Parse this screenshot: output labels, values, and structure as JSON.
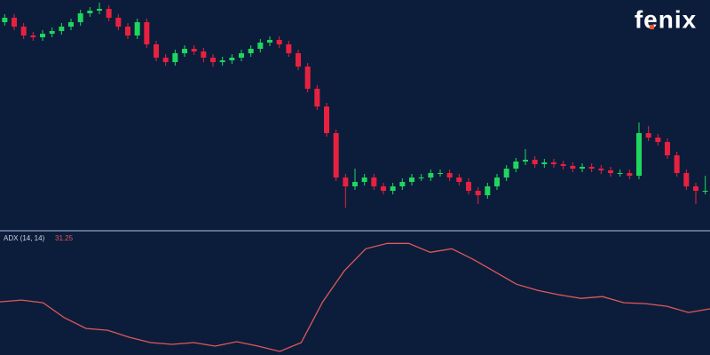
{
  "brand": "fenix",
  "chart_data": [
    {
      "type": "candlestick",
      "up_color": "#1fd65f",
      "down_color": "#e8213f",
      "ylim": [
        0,
        260
      ],
      "open": [
        235,
        240,
        230,
        220,
        218,
        222,
        225,
        230,
        235,
        245,
        248,
        250,
        240,
        230,
        220,
        235,
        210,
        195,
        190,
        200,
        205,
        202,
        195,
        190,
        192,
        195,
        200,
        205,
        212,
        215,
        210,
        200,
        185,
        160,
        140,
        110,
        60,
        50,
        55,
        60,
        50,
        45,
        50,
        55,
        60,
        60,
        65,
        65,
        60,
        55,
        45,
        40,
        50,
        60,
        70,
        78,
        80,
        75,
        77,
        75,
        73,
        70,
        72,
        70,
        68,
        65,
        65,
        62,
        110,
        105,
        100,
        85,
        65,
        50,
        45
      ],
      "high": [
        244,
        244,
        234,
        224,
        226,
        229,
        234,
        239,
        249,
        252,
        257,
        254,
        244,
        234,
        239,
        239,
        214,
        199,
        204,
        209,
        209,
        206,
        199,
        196,
        199,
        204,
        209,
        216,
        219,
        219,
        214,
        204,
        189,
        164,
        144,
        114,
        64,
        70,
        64,
        64,
        54,
        54,
        59,
        64,
        64,
        69,
        69,
        69,
        64,
        59,
        49,
        54,
        64,
        74,
        82,
        92,
        84,
        81,
        81,
        79,
        77,
        76,
        76,
        74,
        72,
        69,
        69,
        122,
        118,
        109,
        104,
        89,
        69,
        54,
        62
      ],
      "low": [
        231,
        226,
        216,
        214,
        214,
        218,
        221,
        226,
        231,
        241,
        244,
        236,
        226,
        216,
        216,
        206,
        191,
        186,
        186,
        196,
        198,
        190,
        185,
        186,
        188,
        191,
        196,
        201,
        208,
        206,
        196,
        181,
        156,
        136,
        106,
        56,
        26,
        46,
        51,
        46,
        41,
        41,
        46,
        51,
        56,
        56,
        61,
        56,
        51,
        41,
        30,
        36,
        46,
        56,
        66,
        74,
        71,
        71,
        71,
        69,
        66,
        66,
        66,
        64,
        61,
        61,
        58,
        58,
        101,
        96,
        81,
        61,
        46,
        30,
        41
      ],
      "close": [
        240,
        230,
        220,
        218,
        222,
        225,
        230,
        235,
        245,
        248,
        250,
        240,
        230,
        220,
        235,
        210,
        195,
        190,
        200,
        205,
        202,
        195,
        190,
        192,
        195,
        200,
        205,
        212,
        215,
        210,
        200,
        185,
        160,
        140,
        110,
        60,
        50,
        55,
        60,
        50,
        45,
        50,
        55,
        60,
        60,
        65,
        65,
        60,
        55,
        45,
        40,
        50,
        60,
        70,
        78,
        80,
        75,
        77,
        75,
        73,
        70,
        72,
        70,
        68,
        65,
        65,
        62,
        110,
        105,
        100,
        85,
        65,
        50,
        45,
        45
      ]
    },
    {
      "type": "line",
      "label": "ADX (14, 14)",
      "legend_value": 31.25,
      "color": "#e0575a",
      "ylim": [
        0,
        83
      ],
      "values": [
        36,
        37.2,
        35.4,
        25.2,
        18,
        16.8,
        12,
        8.4,
        7.2,
        8.4,
        6,
        9,
        6,
        2.4,
        8.4,
        36,
        57,
        72,
        75.6,
        75.6,
        69.6,
        72,
        64.8,
        56.4,
        48,
        43.8,
        40.8,
        38.4,
        39.6,
        35.4,
        34.8,
        33,
        28.8,
        31.25
      ]
    }
  ]
}
